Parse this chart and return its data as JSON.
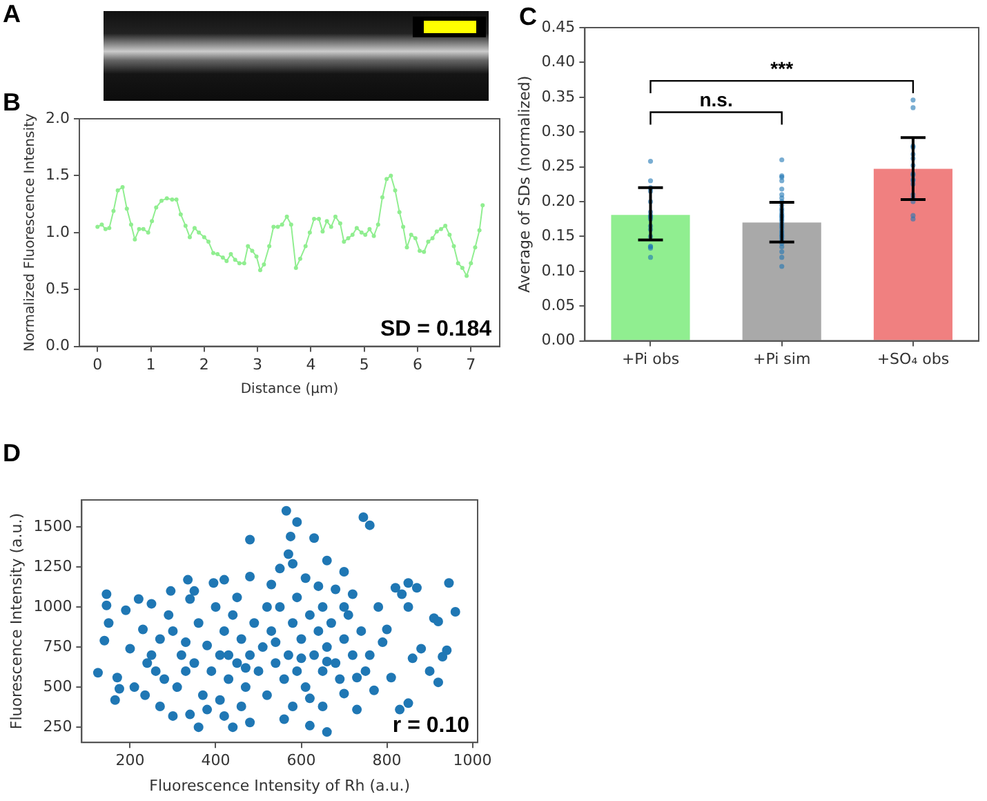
{
  "chart_data": [
    {
      "type": "line",
      "xlabel": "Distance (µm)",
      "ylabel": "Normalized Fluorescence Intensity",
      "annotations": [
        "A",
        "B",
        "SD = 0.184"
      ],
      "marker": "circle",
      "line_style": "solid",
      "grid": false,
      "legend": false,
      "xlim": [
        -0.34,
        7.54
      ],
      "xticks": [
        0,
        1,
        2,
        3,
        4,
        5,
        6,
        7
      ],
      "ylim": [
        0,
        2
      ],
      "yticks": [
        {
          "value": 0,
          "label": "0.0"
        },
        {
          "value": 0.5,
          "label": "0.5"
        },
        {
          "value": 1,
          "label": "1.0"
        },
        {
          "value": 1.5,
          "label": "1.5"
        },
        {
          "value": 2,
          "label": "2.0"
        }
      ],
      "series": [
        {
          "color": "#90ee90",
          "x": [
            0,
            0.08,
            0.15,
            0.22,
            0.3,
            0.38,
            0.47,
            0.55,
            0.63,
            0.7,
            0.78,
            0.86,
            0.95,
            1.02,
            1.1,
            1.2,
            1.3,
            1.4,
            1.48,
            1.56,
            1.65,
            1.73,
            1.82,
            1.9,
            2.0,
            2.08,
            2.17,
            2.25,
            2.35,
            2.42,
            2.5,
            2.58,
            2.66,
            2.75,
            2.82,
            2.9,
            2.98,
            3.05,
            3.12,
            3.22,
            3.3,
            3.38,
            3.46,
            3.55,
            3.63,
            3.72,
            3.8,
            3.9,
            3.98,
            4.06,
            4.15,
            4.22,
            4.3,
            4.38,
            4.46,
            4.55,
            4.62,
            4.7,
            4.78,
            4.86,
            4.95,
            5.02,
            5.1,
            5.18,
            5.26,
            5.34,
            5.42,
            5.5,
            5.58,
            5.66,
            5.73,
            5.8,
            5.88,
            5.96,
            6.04,
            6.12,
            6.2,
            6.28,
            6.36,
            6.44,
            6.52,
            6.6,
            6.68,
            6.76,
            6.84,
            6.92,
            7.0,
            7.08,
            7.16,
            7.22
          ],
          "values": [
            1.05,
            1.07,
            1.03,
            1.04,
            1.19,
            1.37,
            1.4,
            1.21,
            1.07,
            0.94,
            1.03,
            1.03,
            1.0,
            1.1,
            1.22,
            1.28,
            1.3,
            1.29,
            1.29,
            1.16,
            1.06,
            0.96,
            1.04,
            1.0,
            0.96,
            0.92,
            0.82,
            0.81,
            0.78,
            0.75,
            0.81,
            0.76,
            0.73,
            0.73,
            0.88,
            0.84,
            0.79,
            0.67,
            0.72,
            0.88,
            1.05,
            1.05,
            1.07,
            1.14,
            1.07,
            0.69,
            0.77,
            0.88,
            1.0,
            1.12,
            1.12,
            1.01,
            1.1,
            1.05,
            1.14,
            1.08,
            0.92,
            0.95,
            0.98,
            1.04,
            1.0,
            0.98,
            1.03,
            0.97,
            1.07,
            1.31,
            1.47,
            1.5,
            1.37,
            1.18,
            1.05,
            0.87,
            0.98,
            0.95,
            0.84,
            0.83,
            0.92,
            0.95,
            1.01,
            1.03,
            1.06,
            0.98,
            0.88,
            0.73,
            0.69,
            0.62,
            0.73,
            0.87,
            1.02,
            1.24
          ]
        }
      ]
    },
    {
      "type": "bar",
      "ylabel": "Average of SDs (normalized)",
      "annotations": [
        "C",
        "n.s.",
        "***"
      ],
      "grid": false,
      "legend": false,
      "categories": [
        "+Pi obs",
        "+Pi sim",
        "+SO₄ obs"
      ],
      "ylim": [
        0,
        0.45
      ],
      "yticks": [
        {
          "value": 0,
          "label": "0.00"
        },
        {
          "value": 0.05,
          "label": "0.05"
        },
        {
          "value": 0.1,
          "label": "0.10"
        },
        {
          "value": 0.15,
          "label": "0.15"
        },
        {
          "value": 0.2,
          "label": "0.20"
        },
        {
          "value": 0.25,
          "label": "0.25"
        },
        {
          "value": 0.3,
          "label": "0.30"
        },
        {
          "value": 0.35,
          "label": "0.35"
        },
        {
          "value": 0.4,
          "label": "0.40"
        },
        {
          "value": 0.45,
          "label": "0.45"
        }
      ],
      "series": [
        {
          "type": "bar",
          "colors": [
            "#90ee90",
            "#a9a9a9",
            "#f08080"
          ],
          "values": [
            0.181,
            0.17,
            0.247
          ],
          "errors": [
            [
              0.145,
              0.22
            ],
            [
              0.142,
              0.199
            ],
            [
              0.203,
              0.292
            ]
          ]
        },
        {
          "type": "scatter",
          "color": "#1f77b4",
          "marker": "circle",
          "x": [
            "+Pi obs",
            "+Pi obs",
            "+Pi obs",
            "+Pi obs",
            "+Pi obs",
            "+Pi obs",
            "+Pi obs",
            "+Pi obs",
            "+Pi obs",
            "+Pi obs",
            "+Pi obs",
            "+Pi obs",
            "+Pi obs",
            "+Pi obs",
            "+Pi obs",
            "+Pi obs",
            "+Pi obs",
            "+Pi sim",
            "+Pi sim",
            "+Pi sim",
            "+Pi sim",
            "+Pi sim",
            "+Pi sim",
            "+Pi sim",
            "+Pi sim",
            "+Pi sim",
            "+Pi sim",
            "+Pi sim",
            "+Pi sim",
            "+Pi sim",
            "+Pi sim",
            "+Pi sim",
            "+Pi sim",
            "+Pi sim",
            "+Pi sim",
            "+Pi sim",
            "+Pi sim",
            "+Pi sim",
            "+Pi sim",
            "+Pi sim",
            "+Pi sim",
            "+Pi sim",
            "+Pi sim",
            "+Pi sim",
            "+Pi sim",
            "+Pi sim",
            "+Pi sim",
            "+SO₄ obs",
            "+SO₄ obs",
            "+SO₄ obs",
            "+SO₄ obs",
            "+SO₄ obs",
            "+SO₄ obs",
            "+SO₄ obs",
            "+SO₄ obs",
            "+SO₄ obs",
            "+SO₄ obs",
            "+SO₄ obs",
            "+SO₄ obs",
            "+SO₄ obs",
            "+SO₄ obs",
            "+SO₄ obs",
            "+SO₄ obs",
            "+SO₄ obs"
          ],
          "values": [
            0.258,
            0.22,
            0.219,
            0.23,
            0.215,
            0.2,
            0.185,
            0.18,
            0.178,
            0.175,
            0.165,
            0.16,
            0.15,
            0.135,
            0.133,
            0.136,
            0.12,
            0.26,
            0.237,
            0.235,
            0.23,
            0.218,
            0.21,
            0.205,
            0.2,
            0.195,
            0.19,
            0.187,
            0.183,
            0.18,
            0.178,
            0.175,
            0.172,
            0.168,
            0.165,
            0.162,
            0.158,
            0.155,
            0.152,
            0.15,
            0.147,
            0.143,
            0.14,
            0.135,
            0.128,
            0.12,
            0.107,
            0.346,
            0.335,
            0.28,
            0.278,
            0.268,
            0.262,
            0.252,
            0.24,
            0.238,
            0.232,
            0.23,
            0.225,
            0.21,
            0.205,
            0.2,
            0.18,
            0.175
          ]
        }
      ]
    },
    {
      "type": "scatter",
      "xlabel": "Fluorescence Intensity of Rh (a.u.)",
      "ylabel": "Fluorescence Intensity (a.u.)",
      "annotations": [
        "D",
        "r = 0.10"
      ],
      "marker": "circle",
      "grid": false,
      "legend": false,
      "xlim": [
        87,
        1012
      ],
      "xticks": [
        200,
        400,
        600,
        800,
        1000
      ],
      "ylim": [
        155,
        1668
      ],
      "yticks": [
        250,
        500,
        750,
        1000,
        1250,
        1500
      ],
      "series": [
        {
          "color": "#1f77b4",
          "x": [
            565,
            590,
            480,
            575,
            630,
            745,
            760,
            570,
            580,
            550,
            660,
            700,
            125,
            140,
            145,
            145,
            360,
            440,
            620,
            660,
            730,
            830,
            850,
            960,
            945,
            940,
            920,
            900,
            910,
            930,
            920,
            850,
            820,
            835,
            870,
            850,
            150,
            165,
            170,
            175,
            200,
            190,
            220,
            250,
            210,
            235,
            270,
            300,
            340,
            295,
            335,
            395,
            420,
            480,
            530,
            610,
            640,
            680,
            720,
            780,
            800,
            790,
            880,
            860,
            810,
            770,
            700,
            650,
            560,
            480,
            420,
            380,
            300,
            320,
            350,
            360,
            380,
            390,
            400,
            410,
            420,
            430,
            440,
            450,
            460,
            470,
            480,
            490,
            500,
            510,
            520,
            530,
            540,
            550,
            560,
            570,
            580,
            590,
            600,
            610,
            620,
            630,
            640,
            650,
            660,
            670,
            680,
            690,
            700,
            710,
            720,
            740,
            750,
            250,
            260,
            270,
            280,
            290,
            310,
            330,
            340,
            370,
            410,
            450,
            520,
            590,
            650,
            700,
            760,
            730,
            620,
            580,
            460,
            350,
            230,
            240,
            330,
            430,
            470,
            540,
            600,
            660
          ],
          "values": [
            1600,
            1530,
            1420,
            1440,
            1430,
            1560,
            1510,
            1330,
            1270,
            1240,
            1290,
            1220,
            590,
            790,
            1080,
            1010,
            250,
            250,
            260,
            220,
            360,
            360,
            400,
            970,
            1150,
            730,
            530,
            600,
            930,
            690,
            910,
            1150,
            1120,
            1080,
            1120,
            1000,
            900,
            420,
            560,
            490,
            740,
            980,
            1050,
            1020,
            500,
            450,
            380,
            320,
            330,
            1100,
            1170,
            1150,
            1170,
            1190,
            1140,
            1180,
            1130,
            1110,
            1080,
            1000,
            860,
            780,
            740,
            680,
            560,
            480,
            460,
            380,
            300,
            280,
            320,
            360,
            850,
            700,
            650,
            900,
            760,
            600,
            1000,
            700,
            850,
            550,
            950,
            650,
            800,
            500,
            700,
            900,
            600,
            750,
            450,
            850,
            650,
            1000,
            550,
            700,
            900,
            600,
            800,
            500,
            950,
            700,
            850,
            600,
            750,
            900,
            650,
            550,
            800,
            950,
            700,
            850,
            600,
            700,
            600,
            800,
            550,
            950,
            500,
            600,
            1050,
            450,
            420,
            1060,
            1000,
            1060,
            1000,
            1000,
            700,
            560,
            430,
            380,
            380,
            1100,
            860,
            650,
            780,
            700,
            620,
            780,
            680,
            660
          ]
        }
      ]
    }
  ]
}
